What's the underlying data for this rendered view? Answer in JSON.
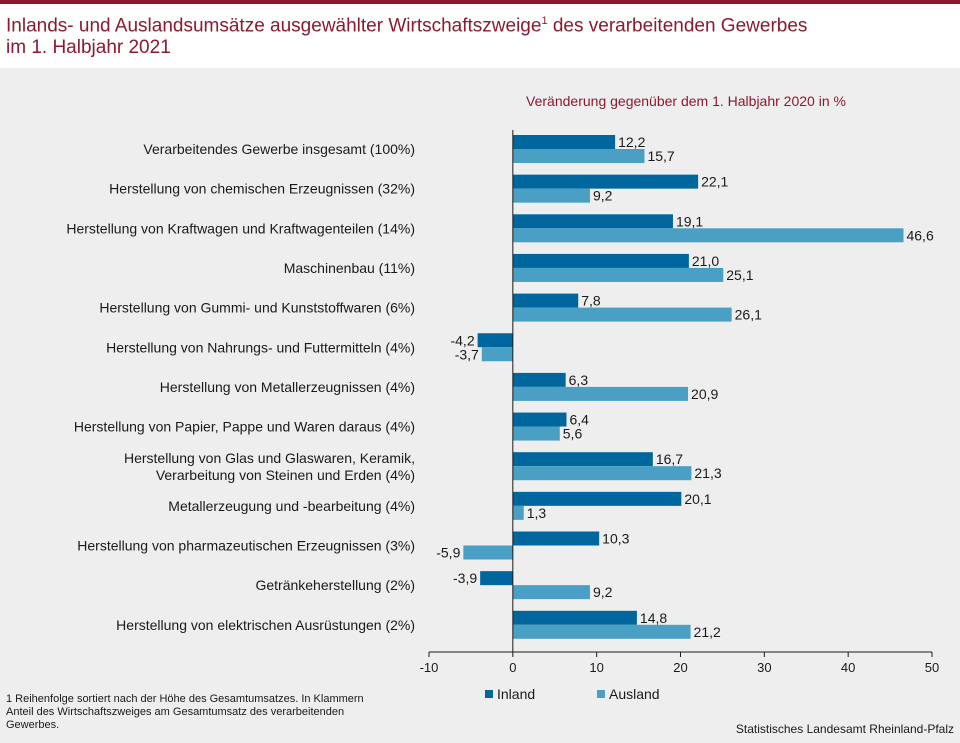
{
  "title": {
    "main": "Inlands- und Auslandsumsätze ausgewählter Wirtschaftszweige",
    "superscript": "1",
    "rest": " des verarbeitenden Gewerbes",
    "line2": "im 1. Halbjahr 2021"
  },
  "footnote": "1 Reihenfolge sortiert nach der Höhe des Gesamtumsatzes. In Klammern Anteil des Wirtschaftszweiges am Gesamtumsatz des verarbeitenden Gewerbes.",
  "source": "Statistisches Landesamt  Rheinland-Pfalz",
  "chart_data": {
    "type": "bar",
    "orientation": "horizontal",
    "subtitle": "Veränderung  gegenüber  dem  1. Halbjahr  2020   in %",
    "categories": [
      [
        "Verarbeitendes Gewerbe insgesamt (100%)"
      ],
      [
        "Herstellung von chemischen Erzeugnissen (32%)"
      ],
      [
        "Herstellung von Kraftwagen und Kraftwagenteilen (14%)"
      ],
      [
        "Maschinenbau (11%)"
      ],
      [
        "Herstellung von Gummi- und Kunststoffwaren (6%)"
      ],
      [
        "Herstellung von Nahrungs- und Futtermitteln (4%)"
      ],
      [
        "Herstellung von Metallerzeugnissen (4%)"
      ],
      [
        "Herstellung von Papier, Pappe und Waren daraus (4%)"
      ],
      [
        "Herstellung von Glas und Glaswaren, Keramik,",
        "Verarbeitung von Steinen und Erden (4%)"
      ],
      [
        "Metallerzeugung und -bearbeitung (4%)"
      ],
      [
        "Herstellung von pharmazeutischen Erzeugnissen (3%)"
      ],
      [
        "Getränkeherstellung (2%)"
      ],
      [
        "Herstellung von elektrischen Ausrüstungen (2%)"
      ]
    ],
    "series": [
      {
        "name": "Inland",
        "color": "#00679e",
        "values": [
          12.2,
          22.1,
          19.1,
          21.0,
          7.8,
          -4.2,
          6.3,
          6.4,
          16.7,
          20.1,
          10.3,
          -3.9,
          14.8
        ],
        "labels": [
          "12,2",
          "22,1",
          "19,1",
          "21,0",
          "7,8",
          "-4,2",
          "6,3",
          "6,4",
          "16,7",
          "20,1",
          "10,3",
          "-3,9",
          "14,8"
        ]
      },
      {
        "name": "Ausland",
        "color": "#4a9fc5",
        "values": [
          15.7,
          9.2,
          46.6,
          25.1,
          26.1,
          -3.7,
          20.9,
          5.6,
          21.3,
          1.3,
          -5.9,
          9.2,
          21.2
        ],
        "labels": [
          "15,7",
          "9,2",
          "46,6",
          "25,1",
          "26,1",
          "-3,7",
          "20,9",
          "5,6",
          "21,3",
          "1,3",
          "-5,9",
          "9,2",
          "21,2"
        ]
      }
    ],
    "xlim": [
      -10,
      50
    ],
    "xticks": [
      -10,
      0,
      10,
      20,
      30,
      40,
      50
    ],
    "xtick_labels": [
      "-10",
      "0",
      "10",
      "20",
      "30",
      "40",
      "50"
    ],
    "grid": false,
    "legend": "bottom-center"
  }
}
